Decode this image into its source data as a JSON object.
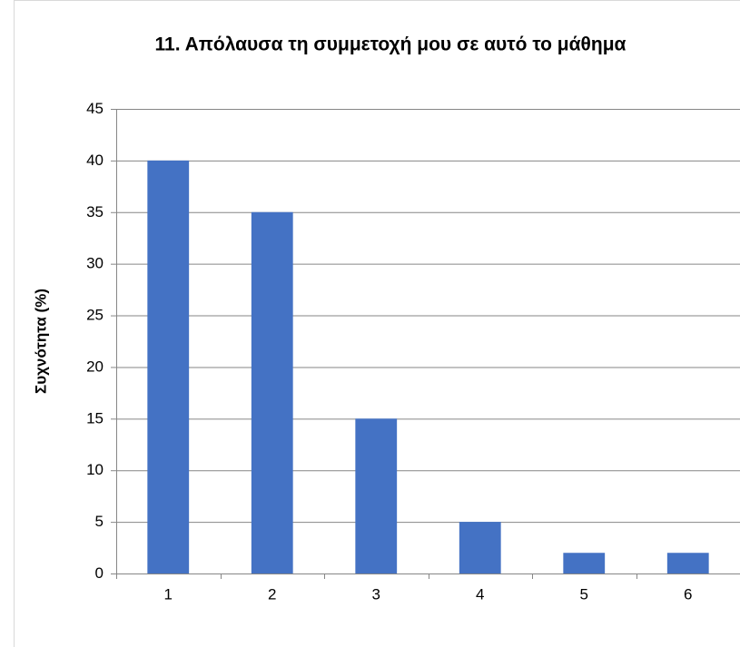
{
  "chart_data": {
    "type": "bar",
    "title": "11. Απόλαυσα τη συμμετοχή μου σε αυτό το μάθημα",
    "y_label": "Συχνότητα (%)",
    "categories": [
      "1",
      "2",
      "3",
      "4",
      "5",
      "6"
    ],
    "values": [
      40,
      35,
      15,
      5,
      2,
      2
    ],
    "color": "#4472c4",
    "ylim": [
      0,
      45
    ],
    "yticks": [
      0,
      5,
      10,
      15,
      20,
      25,
      30,
      35,
      40,
      45
    ],
    "grid": true
  }
}
